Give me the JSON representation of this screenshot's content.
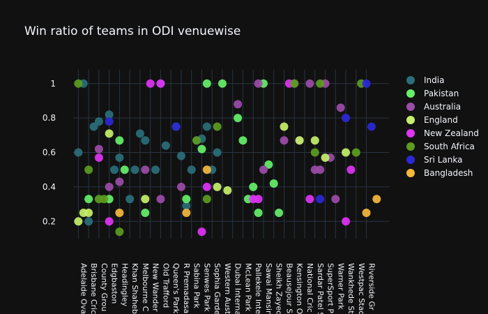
{
  "chart_data": {
    "type": "scatter",
    "title": "Win ratio of teams in ODI venuewise",
    "xlabel": "",
    "ylabel": "",
    "ylim": [
      0.1,
      1.08
    ],
    "yticks": [
      0.2,
      0.4,
      0.6,
      0.8,
      1
    ],
    "ytick_labels": [
      "0.2",
      "0.4",
      "0.6",
      "0.8",
      "1"
    ],
    "grid": true,
    "legend_position": "right",
    "venues": [
      "Adelaide Oval",
      "Brisbane Cricket Ground",
      "County Ground",
      "Edgbaston",
      "Headingley",
      "Khan Shaheb Osman Ali Stadium",
      "Melbourne Cricket Ground",
      "New Wanderers Stadium",
      "Old Trafford",
      "Queen's Park Oval",
      "R Premadasa Stadium",
      "Sabina Park",
      "Senwes Park",
      "Sophia Gardens",
      "Western Australia Cricket Association Ground",
      "Dubai International Cricket Stadium",
      "McLean Park",
      "Pallekele International Cricket Stadium",
      "Sawai Mansingh Stadium",
      "Sheikh Zayed Stadium",
      "Beausejour Stadium",
      "Kensington Oval",
      "National Cricket Stadium",
      "Sardar Patel Stadium",
      "SuperSport Park",
      "Warner Park",
      "Wankhede Stadium",
      "Westpac Stadium",
      "Riverside Ground"
    ],
    "xtick_labels": [
      "Adelaide Ova",
      "Brisbane Cric",
      "County Grou",
      "Edgbaston",
      "Headingley",
      "Khan Shaheb",
      "Melbourne C",
      "New Wander",
      "Old Trafford",
      "Queen's Park",
      "R Premadasa",
      "Sabina Park",
      "Senwes Park",
      "Sophia Garde",
      "Western Aust",
      "Dubai Interna",
      "McLean Park",
      "Pallekele Inte",
      "Sawai Mansin",
      "Sheikh Zayed",
      "Beausejour S",
      "Kensington O",
      "National Cric",
      "Sardar Patel S",
      "SuperSport P",
      "Warner Park",
      "Wankhede St",
      "Westpac Stad",
      "Riverside Gr"
    ],
    "x_range": [
      -0.5,
      30.2
    ],
    "series": [
      {
        "name": "India",
        "color": "#2a6f7a",
        "points": [
          {
            "x": 0,
            "y": 0.6
          },
          {
            "x": 0.5,
            "y": 1
          },
          {
            "x": 1,
            "y": 0.2
          },
          {
            "x": 1.5,
            "y": 0.75
          },
          {
            "x": 2,
            "y": 0.78
          },
          {
            "x": 3,
            "y": 0.82
          },
          {
            "x": 3.5,
            "y": 0.5
          },
          {
            "x": 4,
            "y": 0.57
          },
          {
            "x": 5,
            "y": 0.33
          },
          {
            "x": 5.5,
            "y": 0.5
          },
          {
            "x": 6,
            "y": 0.71
          },
          {
            "x": 6.5,
            "y": 0.67
          },
          {
            "x": 7.5,
            "y": 0.5
          },
          {
            "x": 8,
            "y": 1
          },
          {
            "x": 8.5,
            "y": 0.64
          },
          {
            "x": 9.5,
            "y": 0.75
          },
          {
            "x": 10,
            "y": 0.58
          },
          {
            "x": 10.5,
            "y": 0.29
          },
          {
            "x": 11,
            "y": 0.5
          },
          {
            "x": 11.5,
            "y": 0.67
          },
          {
            "x": 12,
            "y": 0.68
          },
          {
            "x": 12.5,
            "y": 0.75
          },
          {
            "x": 13,
            "y": 0.5
          },
          {
            "x": 13.5,
            "y": 0.6
          }
        ]
      },
      {
        "name": "Pakistan",
        "color": "#66f06a",
        "points": [
          {
            "x": 1,
            "y": 0.33
          },
          {
            "x": 3,
            "y": 0.33
          },
          {
            "x": 4,
            "y": 0.67
          },
          {
            "x": 4.5,
            "y": 0.5
          },
          {
            "x": 6.5,
            "y": 0.25
          },
          {
            "x": 10.5,
            "y": 0.33
          },
          {
            "x": 12,
            "y": 0.62
          },
          {
            "x": 12.5,
            "y": 1
          },
          {
            "x": 14,
            "y": 1
          },
          {
            "x": 15.5,
            "y": 0.8
          },
          {
            "x": 16,
            "y": 0.67
          },
          {
            "x": 16.5,
            "y": 0.33
          },
          {
            "x": 17,
            "y": 0.4
          },
          {
            "x": 17.5,
            "y": 0.25
          },
          {
            "x": 18,
            "y": 1
          },
          {
            "x": 18.5,
            "y": 0.53
          },
          {
            "x": 19,
            "y": 0.42
          },
          {
            "x": 19.5,
            "y": 0.25
          }
        ]
      },
      {
        "name": "Australia",
        "color": "#9b4ca8",
        "points": [
          {
            "x": 2,
            "y": 0.62
          },
          {
            "x": 3,
            "y": 0.4
          },
          {
            "x": 4,
            "y": 0.43
          },
          {
            "x": 6.5,
            "y": 0.5
          },
          {
            "x": 8,
            "y": 0.33
          },
          {
            "x": 10,
            "y": 0.4
          },
          {
            "x": 15.5,
            "y": 0.88
          },
          {
            "x": 17.5,
            "y": 1
          },
          {
            "x": 18,
            "y": 0.5
          },
          {
            "x": 20,
            "y": 0.67
          },
          {
            "x": 21,
            "y": 1
          },
          {
            "x": 21.5,
            "y": 0.67
          },
          {
            "x": 22.5,
            "y": 1
          },
          {
            "x": 23,
            "y": 0.5
          },
          {
            "x": 23.5,
            "y": 0.5
          },
          {
            "x": 24,
            "y": 1
          },
          {
            "x": 24.5,
            "y": 0.57
          },
          {
            "x": 25,
            "y": 0.33
          },
          {
            "x": 25.5,
            "y": 0.86
          }
        ]
      },
      {
        "name": "England",
        "color": "#c6f06a",
        "points": [
          {
            "x": 0,
            "y": 0.2
          },
          {
            "x": 0.5,
            "y": 0.25
          },
          {
            "x": 1,
            "y": 0.25
          },
          {
            "x": 3,
            "y": 0.71
          },
          {
            "x": 6.5,
            "y": 0.33
          },
          {
            "x": 13.5,
            "y": 0.4
          },
          {
            "x": 14.5,
            "y": 0.38
          },
          {
            "x": 20,
            "y": 0.75
          },
          {
            "x": 21.5,
            "y": 0.67
          },
          {
            "x": 23,
            "y": 0.67
          },
          {
            "x": 24,
            "y": 0.57
          },
          {
            "x": 26,
            "y": 0.6
          }
        ]
      },
      {
        "name": "New Zealand",
        "color": "#e033f5",
        "points": [
          {
            "x": 2,
            "y": 0.57
          },
          {
            "x": 3,
            "y": 0.2
          },
          {
            "x": 7,
            "y": 1
          },
          {
            "x": 8,
            "y": 1
          },
          {
            "x": 12,
            "y": 0.14
          },
          {
            "x": 12.5,
            "y": 0.4
          },
          {
            "x": 17,
            "y": 0.33
          },
          {
            "x": 17.5,
            "y": 0.33
          },
          {
            "x": 20.5,
            "y": 1
          },
          {
            "x": 22.5,
            "y": 0.33
          },
          {
            "x": 26,
            "y": 0.2
          },
          {
            "x": 26.5,
            "y": 0.5
          }
        ]
      },
      {
        "name": "South Africa",
        "color": "#5c9c1f",
        "points": [
          {
            "x": 0,
            "y": 1
          },
          {
            "x": 1,
            "y": 0.5
          },
          {
            "x": 2,
            "y": 0.33
          },
          {
            "x": 2.5,
            "y": 0.33
          },
          {
            "x": 4,
            "y": 0.14
          },
          {
            "x": 11.5,
            "y": 0.67
          },
          {
            "x": 12.5,
            "y": 0.33
          },
          {
            "x": 13.5,
            "y": 0.75
          },
          {
            "x": 21,
            "y": 1
          },
          {
            "x": 23,
            "y": 0.6
          },
          {
            "x": 23.5,
            "y": 1
          },
          {
            "x": 27,
            "y": 0.6
          },
          {
            "x": 27.5,
            "y": 1
          }
        ]
      },
      {
        "name": "Sri Lanka",
        "color": "#2b28d6",
        "points": [
          {
            "x": 3,
            "y": 0.78
          },
          {
            "x": 9.5,
            "y": 0.75
          },
          {
            "x": 23.5,
            "y": 0.33
          },
          {
            "x": 26,
            "y": 0.8
          },
          {
            "x": 28,
            "y": 1
          },
          {
            "x": 28.5,
            "y": 0.75
          }
        ]
      },
      {
        "name": "Bangladesh",
        "color": "#f5b83d",
        "points": [
          {
            "x": 4,
            "y": 0.25
          },
          {
            "x": 10.5,
            "y": 0.25
          },
          {
            "x": 12.5,
            "y": 0.5
          },
          {
            "x": 28,
            "y": 0.25
          },
          {
            "x": 29,
            "y": 0.33
          }
        ]
      }
    ]
  }
}
